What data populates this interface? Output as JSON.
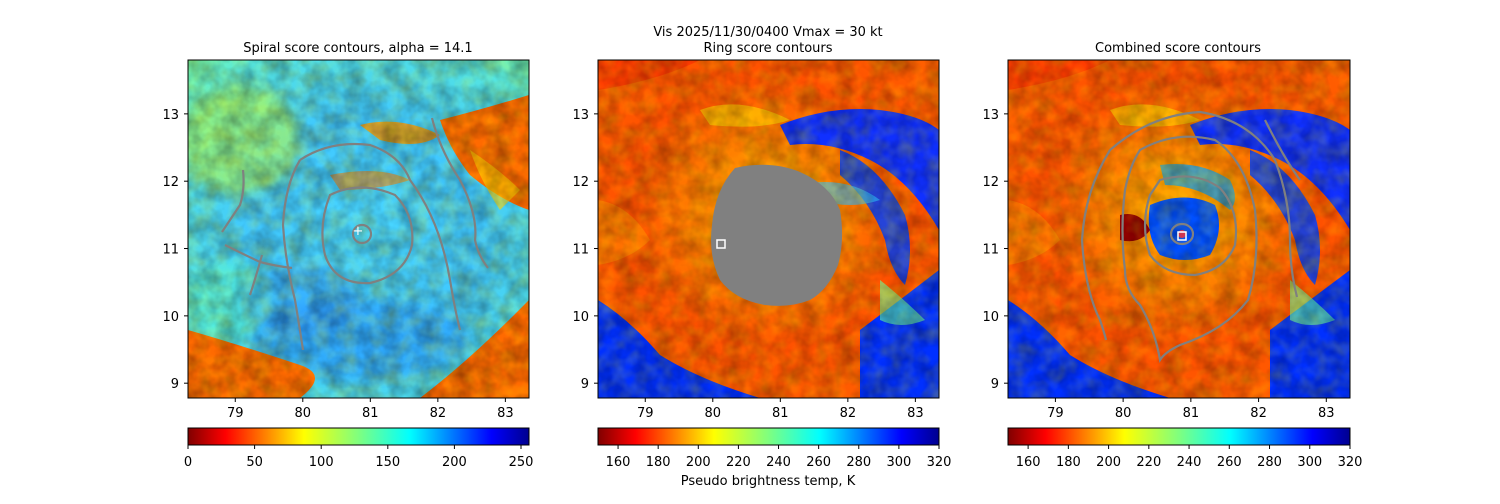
{
  "suptitle": "Vis  2025/11/30/0400    Vmax = 30 kt",
  "colorbar_label": "Pseudo brightness temp, K",
  "chart_data": [
    {
      "type": "heatmap",
      "title": "Spiral score contours, alpha = 14.1",
      "x_ticks": [
        79,
        80,
        81,
        82,
        83
      ],
      "y_ticks": [
        9,
        10,
        11,
        12,
        13
      ],
      "xlim": [
        78.3,
        83.35
      ],
      "ylim": [
        8.78,
        13.8
      ],
      "colorbar": {
        "ticks": [
          0,
          50,
          100,
          150,
          200,
          250
        ],
        "range": [
          0,
          256
        ],
        "cmap": "jet_r"
      },
      "marker": {
        "type": "plus",
        "x": 80.75,
        "y": 11.3
      },
      "center": {
        "x": 80.85,
        "y": 11.2
      },
      "contour_levels": [
        0.3,
        0.6,
        0.9
      ]
    },
    {
      "type": "heatmap",
      "title": "Ring score contours",
      "x_ticks": [
        79,
        80,
        81,
        82,
        83
      ],
      "y_ticks": [
        9,
        10,
        11,
        12,
        13
      ],
      "xlim": [
        78.3,
        83.35
      ],
      "ylim": [
        8.78,
        13.8
      ],
      "colorbar": {
        "ticks": [
          160,
          180,
          200,
          220,
          240,
          260,
          280,
          300,
          320
        ],
        "range": [
          150,
          320
        ],
        "cmap": "jet_r"
      },
      "marker": {
        "type": "square",
        "x": 80.08,
        "y": 11.05
      },
      "masked_region": {
        "center_x": 81.0,
        "center_y": 11.0,
        "rx_deg": 1.0,
        "ry_deg": 1.2,
        "color": "#808080"
      }
    },
    {
      "type": "heatmap",
      "title": "Combined score contours",
      "x_ticks": [
        79,
        80,
        81,
        82,
        83
      ],
      "y_ticks": [
        9,
        10,
        11,
        12,
        13
      ],
      "xlim": [
        78.3,
        83.35
      ],
      "ylim": [
        8.78,
        13.8
      ],
      "colorbar": {
        "ticks": [
          160,
          180,
          200,
          220,
          240,
          260,
          280,
          300,
          320
        ],
        "range": [
          150,
          320
        ],
        "cmap": "jet_r"
      },
      "marker": {
        "type": "square",
        "x": 80.85,
        "y": 11.15
      },
      "center": {
        "x": 80.85,
        "y": 11.2
      },
      "contour_levels": [
        0.3,
        0.6,
        0.9
      ]
    }
  ]
}
